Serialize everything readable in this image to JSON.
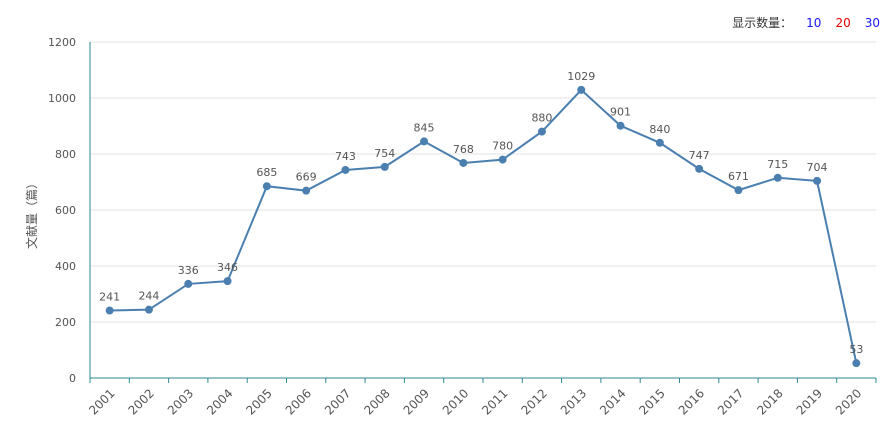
{
  "controls": {
    "label": "显示数量：",
    "options": [
      {
        "label": "10",
        "color": "#1515ff"
      },
      {
        "label": "20",
        "color": "#e60000"
      },
      {
        "label": "30",
        "color": "#1515ff"
      }
    ]
  },
  "chart_data": {
    "type": "line",
    "title": "",
    "xlabel": "",
    "ylabel": "文献量（篇）",
    "categories": [
      "2001",
      "2002",
      "2003",
      "2004",
      "2005",
      "2006",
      "2007",
      "2008",
      "2009",
      "2010",
      "2011",
      "2012",
      "2013",
      "2014",
      "2015",
      "2016",
      "2017",
      "2018",
      "2019",
      "2020"
    ],
    "series": [
      {
        "values": [
          241,
          244,
          336,
          346,
          685,
          669,
          743,
          754,
          845,
          768,
          780,
          880,
          1029,
          901,
          840,
          747,
          671,
          715,
          704,
          53
        ]
      }
    ],
    "ylim": [
      0,
      1200
    ],
    "yticks": [
      0,
      200,
      400,
      600,
      800,
      1000,
      1200
    ],
    "grid": true,
    "colors": {
      "line": "#4a7fb0",
      "axis": "#2a8a95",
      "grid": "#e3e3e3",
      "text": "#555555"
    }
  }
}
